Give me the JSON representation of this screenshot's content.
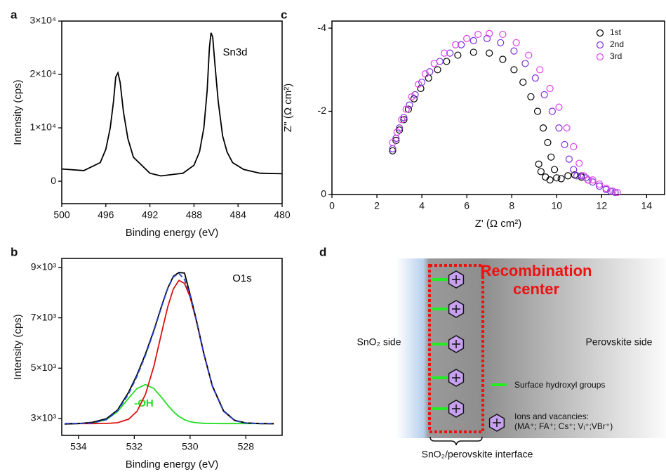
{
  "chart_data": [
    {
      "panel": "a",
      "type": "line",
      "x_label": "Binding energy (eV)",
      "y_label": "Intensity (cps)",
      "annotations": [
        {
          "text": "Sn3d",
          "color": "#000000"
        }
      ],
      "xlim": [
        500,
        480
      ],
      "xticks": [
        500,
        496,
        492,
        488,
        484,
        480
      ],
      "ylim": [
        -4200,
        30000
      ],
      "yticks": [
        0,
        {
          "value": 10000,
          "label": "1×10⁴"
        },
        {
          "value": 20000,
          "label": "2×10⁴"
        },
        {
          "value": 30000,
          "label": "3×10⁴"
        }
      ],
      "x": [
        500,
        498,
        496.5,
        496,
        495.6,
        495.3,
        495.1,
        494.9,
        494.7,
        494.4,
        494,
        493.5,
        492,
        491,
        489,
        488,
        487.5,
        487.1,
        486.8,
        486.6,
        486.45,
        486.3,
        486.1,
        485.8,
        485.4,
        485,
        484.5,
        483.5,
        482,
        480
      ],
      "series": [
        {
          "color": "#000000",
          "values": [
            2300,
            2000,
            3500,
            6000,
            10000,
            15000,
            19500,
            20300,
            18500,
            13000,
            8000,
            4500,
            1500,
            1000,
            1500,
            3000,
            5500,
            10000,
            17000,
            25000,
            27800,
            27000,
            22000,
            15000,
            8500,
            5500,
            3500,
            2200,
            1500,
            1400
          ]
        }
      ]
    },
    {
      "panel": "b",
      "type": "line",
      "x_label": "Binding energy (eV)",
      "y_label": "Intensity (cps)",
      "annotations": [
        {
          "text": "O1s",
          "color": "#000000"
        },
        {
          "text": "-OH",
          "color": "#22dd22"
        }
      ],
      "xlim": [
        534.6,
        526.7
      ],
      "xticks": [
        534,
        532,
        530,
        528
      ],
      "ylim": [
        2330,
        9360
      ],
      "yticks": [
        {
          "value": 3000,
          "label": "3×10³"
        },
        {
          "value": 5000,
          "label": "5×10³"
        },
        {
          "value": 7000,
          "label": "7×10³"
        },
        {
          "value": 9000,
          "label": "9×10³"
        }
      ],
      "x": [
        534.5,
        534,
        533.5,
        533,
        532.6,
        532.2,
        531.9,
        531.6,
        531.3,
        531,
        530.8,
        530.6,
        530.4,
        530.2,
        530,
        529.8,
        529.5,
        529.2,
        528.8,
        528.4,
        528,
        527.5,
        527
      ],
      "series": [
        {
          "color": "#22dd22",
          "values": [
            2800,
            2802,
            2822,
            2952,
            3275,
            3812,
            4193,
            4350,
            4193,
            3812,
            3527,
            3275,
            3083,
            2952,
            2875,
            2834,
            2809,
            2802,
            2800,
            2800,
            2800,
            2800,
            2800
          ]
        },
        {
          "color": "#dd1111",
          "values": [
            2800,
            2800,
            2800,
            2804,
            2832,
            2974,
            3291,
            3957,
            5070,
            6505,
            7435,
            8147,
            8486,
            8370,
            7830,
            6985,
            5527,
            4277,
            3291,
            2918,
            2820,
            2800,
            2800
          ]
        },
        {
          "color": "#000000",
          "values": [
            2780,
            2800,
            2850,
            2990,
            3340,
            4050,
            4740,
            5560,
            6500,
            7540,
            8180,
            8650,
            8800,
            8780,
            7940,
            7040,
            5560,
            4300,
            3310,
            2930,
            2825,
            2800,
            2790
          ]
        },
        {
          "color": "#2244cc",
          "dashed": true,
          "values": [
            2800,
            2802,
            2822,
            2956,
            3307,
            3986,
            4684,
            5507,
            6463,
            7517,
            8162,
            8622,
            8769,
            8522,
            7905,
            7019,
            5536,
            4279,
            3291,
            2918,
            2820,
            2800,
            2800
          ]
        }
      ]
    },
    {
      "panel": "c",
      "type": "scatter",
      "x_label": "Z' (Ω cm²)",
      "y_label": "Z'' (Ω cm²)",
      "xlim": [
        0,
        14.8
      ],
      "xticks": [
        0,
        2,
        4,
        6,
        8,
        10,
        12,
        14
      ],
      "ylim": [
        0,
        -4.17
      ],
      "yticks": [
        0,
        -2,
        -4
      ],
      "legend": "top-right",
      "series": [
        {
          "name": "1st",
          "color": "#000000",
          "x": [
            2.7,
            2.85,
            3.0,
            3.2,
            3.4,
            3.65,
            3.95,
            4.3,
            4.7,
            5.1,
            5.6,
            6.3,
            7.0,
            7.6,
            8.1,
            8.5,
            8.85,
            9.15,
            9.4,
            9.6,
            9.75,
            9.9,
            10.0,
            9.2,
            9.3,
            9.5,
            9.7,
            10.2,
            10.5,
            10.8,
            11.1,
            11.4
          ],
          "values": [
            -1.05,
            -1.3,
            -1.55,
            -1.8,
            -2.05,
            -2.3,
            -2.55,
            -2.8,
            -3.0,
            -3.2,
            -3.35,
            -3.42,
            -3.4,
            -3.25,
            -3.0,
            -2.7,
            -2.35,
            -2.0,
            -1.6,
            -1.25,
            -0.9,
            -0.6,
            -0.4,
            -0.73,
            -0.55,
            -0.42,
            -0.35,
            -0.38,
            -0.45,
            -0.47,
            -0.42,
            -0.35
          ]
        },
        {
          "name": "2nd",
          "color": "#7a2fe0",
          "x": [
            2.7,
            2.85,
            3.0,
            3.2,
            3.45,
            3.7,
            4.0,
            4.35,
            4.8,
            5.25,
            5.75,
            6.3,
            6.9,
            7.5,
            8.1,
            8.6,
            9.05,
            9.45,
            9.8,
            10.1,
            10.35,
            10.55,
            10.75,
            10.9,
            11.1,
            11.3,
            11.6,
            11.9,
            12.2,
            12.4,
            12.6
          ],
          "values": [
            -1.1,
            -1.35,
            -1.6,
            -1.85,
            -2.15,
            -2.4,
            -2.7,
            -2.95,
            -3.2,
            -3.4,
            -3.6,
            -3.7,
            -3.75,
            -3.65,
            -3.45,
            -3.15,
            -2.8,
            -2.4,
            -2.0,
            -1.6,
            -1.2,
            -0.85,
            -0.6,
            -0.45,
            -0.45,
            -0.4,
            -0.3,
            -0.2,
            -0.12,
            -0.08,
            -0.05
          ]
        },
        {
          "name": "3rd",
          "color": "#e040e8",
          "x": [
            2.7,
            2.9,
            3.1,
            3.3,
            3.55,
            3.85,
            4.15,
            4.55,
            5.0,
            5.5,
            6.0,
            6.5,
            7.0,
            7.6,
            8.2,
            8.75,
            9.25,
            9.7,
            10.1,
            10.45,
            10.75,
            11.0,
            11.2,
            11.4,
            11.6,
            11.9,
            12.2,
            12.5,
            12.7
          ],
          "values": [
            -1.25,
            -1.5,
            -1.8,
            -2.05,
            -2.35,
            -2.65,
            -2.9,
            -3.15,
            -3.4,
            -3.6,
            -3.75,
            -3.85,
            -3.87,
            -3.85,
            -3.65,
            -3.35,
            -3.0,
            -2.55,
            -2.1,
            -1.6,
            -1.15,
            -0.75,
            -0.45,
            -0.35,
            -0.35,
            -0.25,
            -0.15,
            -0.08,
            -0.05
          ]
        }
      ]
    }
  ],
  "diagram": {
    "panel": "d",
    "title": [
      "Recombination",
      "center"
    ],
    "left_label": "SnO₂ side",
    "right_label": "Perovskite side",
    "legend": [
      "Surface hydroxyl groups",
      "Ions and vacancies:",
      "(MA⁺; FA⁺; Cs⁺; Vᵢ⁺;VBr⁺)"
    ],
    "bottom_label": "SnO₂/perovskite interface"
  }
}
